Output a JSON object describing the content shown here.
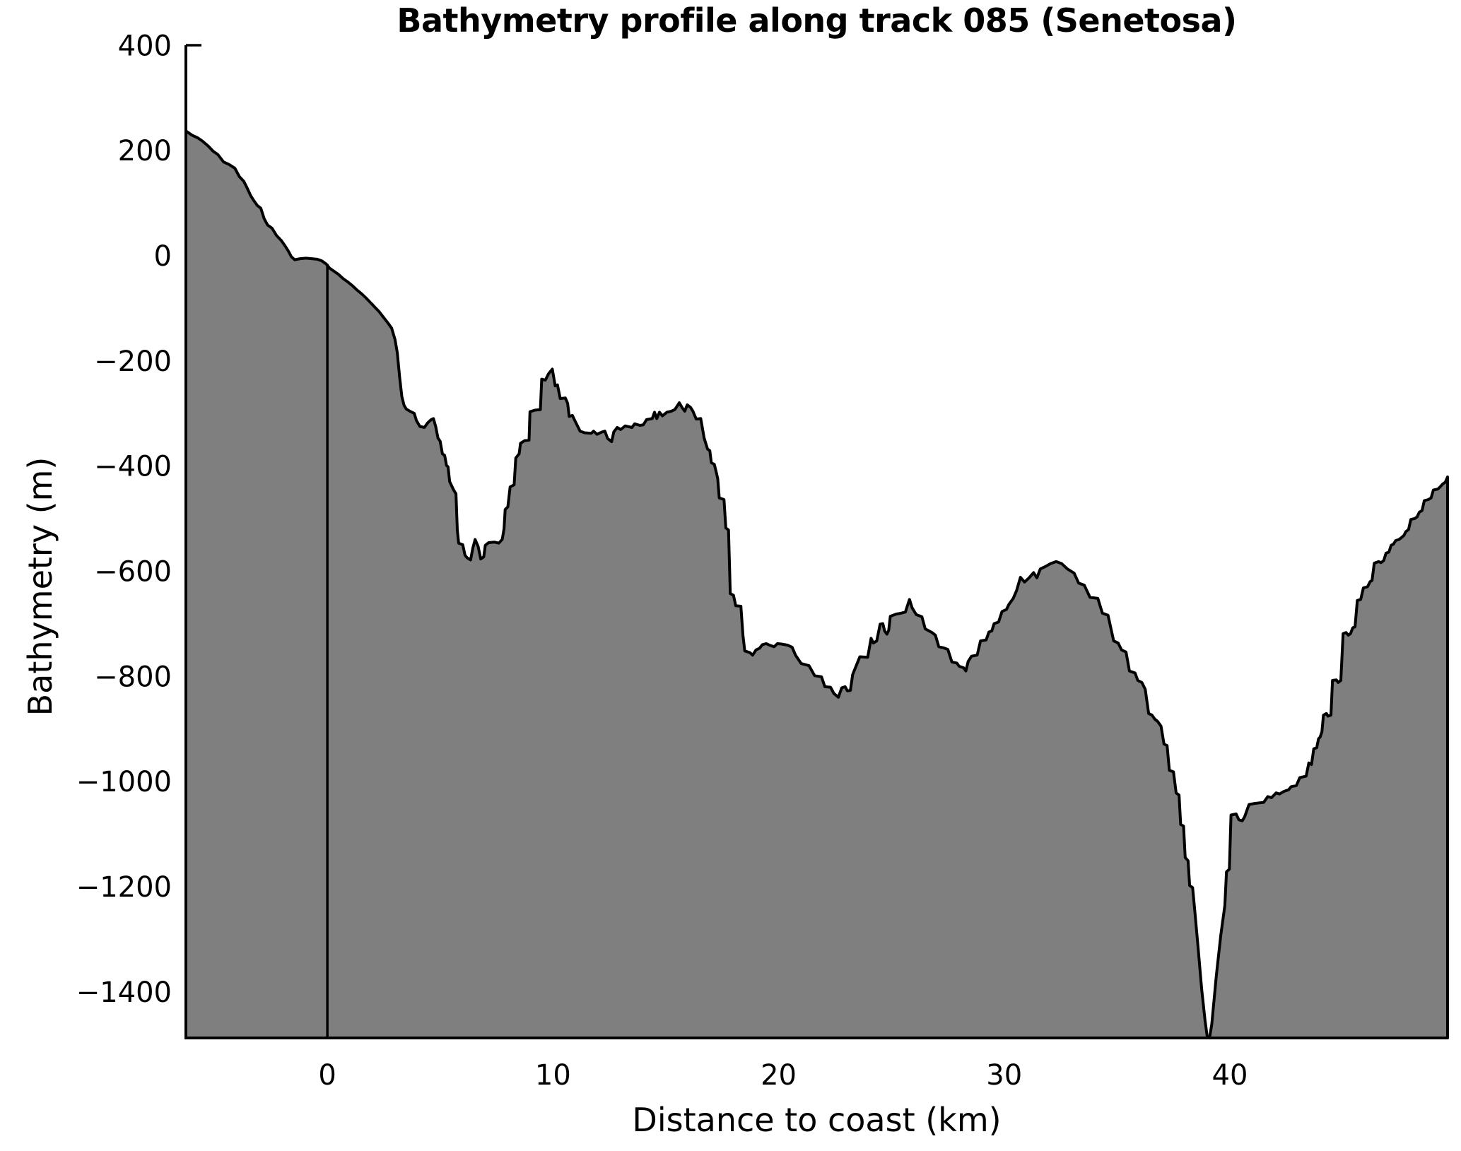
{
  "title": "Bathymetry profile along track 085 (Senetosa)",
  "chart_data": {
    "type": "area",
    "title": "Bathymetry profile along track 085 (Senetosa)",
    "xlabel": "Distance to coast (km)",
    "ylabel": "Bathymetry (m)",
    "xlim": [
      -6.27,
      49.65
    ],
    "ylim": [
      -1488,
      400
    ],
    "grid": false,
    "legend": null,
    "fill_color": "#7f7f7f",
    "line_color": "#000000",
    "background_color": "#ffffff",
    "coast_marker_x": 0,
    "x_ticks": [
      {
        "v": 0,
        "label": "0"
      },
      {
        "v": 10,
        "label": "10"
      },
      {
        "v": 20,
        "label": "20"
      },
      {
        "v": 30,
        "label": "30"
      },
      {
        "v": 40,
        "label": "40"
      }
    ],
    "y_ticks": [
      {
        "v": 400,
        "label": "400"
      },
      {
        "v": 200,
        "label": "200"
      },
      {
        "v": 0,
        "label": "0"
      },
      {
        "v": -200,
        "label": "−200"
      },
      {
        "v": -400,
        "label": "−400"
      },
      {
        "v": -600,
        "label": "−600"
      },
      {
        "v": -800,
        "label": "−800"
      },
      {
        "v": -1000,
        "label": "−1000"
      },
      {
        "v": -1200,
        "label": "−1200"
      },
      {
        "v": -1400,
        "label": "−1400"
      }
    ],
    "profile": [
      [
        -6.27,
        237
      ],
      [
        -6.0,
        229
      ],
      [
        -5.75,
        224
      ],
      [
        -5.55,
        218
      ],
      [
        -5.3,
        209
      ],
      [
        -5.05,
        198
      ],
      [
        -4.85,
        192
      ],
      [
        -4.6,
        178
      ],
      [
        -4.35,
        173
      ],
      [
        -4.1,
        166
      ],
      [
        -3.9,
        150
      ],
      [
        -3.7,
        141
      ],
      [
        -3.55,
        128
      ],
      [
        -3.4,
        114
      ],
      [
        -3.25,
        104
      ],
      [
        -3.1,
        95
      ],
      [
        -2.95,
        90
      ],
      [
        -2.8,
        70
      ],
      [
        -2.65,
        58
      ],
      [
        -2.45,
        52
      ],
      [
        -2.25,
        38
      ],
      [
        -2.05,
        29
      ],
      [
        -1.9,
        20
      ],
      [
        -1.75,
        10
      ],
      [
        -1.6,
        -2
      ],
      [
        -1.45,
        -8
      ],
      [
        -1.2,
        -6
      ],
      [
        -0.95,
        -5
      ],
      [
        -0.7,
        -6
      ],
      [
        -0.45,
        -7
      ],
      [
        -0.25,
        -10
      ],
      [
        -0.05,
        -16
      ],
      [
        0.1,
        -24
      ],
      [
        0.3,
        -30
      ],
      [
        0.5,
        -36
      ],
      [
        0.7,
        -44
      ],
      [
        0.9,
        -50
      ],
      [
        1.1,
        -57
      ],
      [
        1.3,
        -65
      ],
      [
        1.5,
        -72
      ],
      [
        1.7,
        -80
      ],
      [
        1.9,
        -89
      ],
      [
        2.1,
        -98
      ],
      [
        2.3,
        -107
      ],
      [
        2.5,
        -118
      ],
      [
        2.7,
        -129
      ],
      [
        2.85,
        -138
      ],
      [
        3.0,
        -160
      ],
      [
        3.1,
        -185
      ],
      [
        3.2,
        -230
      ],
      [
        3.3,
        -268
      ],
      [
        3.4,
        -285
      ],
      [
        3.5,
        -292
      ],
      [
        3.7,
        -297
      ],
      [
        3.85,
        -300
      ],
      [
        3.95,
        -314
      ],
      [
        4.1,
        -325
      ],
      [
        4.3,
        -327
      ],
      [
        4.45,
        -318
      ],
      [
        4.6,
        -312
      ],
      [
        4.7,
        -310
      ],
      [
        4.8,
        -325
      ],
      [
        4.9,
        -347
      ],
      [
        5.0,
        -353
      ],
      [
        5.1,
        -377
      ],
      [
        5.2,
        -380
      ],
      [
        5.28,
        -399
      ],
      [
        5.35,
        -402
      ],
      [
        5.42,
        -430
      ],
      [
        5.5,
        -437
      ],
      [
        5.6,
        -446
      ],
      [
        5.7,
        -453
      ],
      [
        5.76,
        -522
      ],
      [
        5.82,
        -547
      ],
      [
        6.0,
        -550
      ],
      [
        6.1,
        -570
      ],
      [
        6.2,
        -575
      ],
      [
        6.35,
        -579
      ],
      [
        6.45,
        -556
      ],
      [
        6.55,
        -540
      ],
      [
        6.68,
        -553
      ],
      [
        6.8,
        -577
      ],
      [
        6.93,
        -573
      ],
      [
        7.0,
        -551
      ],
      [
        7.15,
        -546
      ],
      [
        7.4,
        -545
      ],
      [
        7.6,
        -547
      ],
      [
        7.75,
        -540
      ],
      [
        7.83,
        -520
      ],
      [
        7.88,
        -483
      ],
      [
        8.0,
        -478
      ],
      [
        8.1,
        -440
      ],
      [
        8.28,
        -436
      ],
      [
        8.35,
        -385
      ],
      [
        8.5,
        -377
      ],
      [
        8.56,
        -357
      ],
      [
        8.75,
        -352
      ],
      [
        8.94,
        -351
      ],
      [
        8.98,
        -297
      ],
      [
        9.2,
        -294
      ],
      [
        9.44,
        -293
      ],
      [
        9.5,
        -235
      ],
      [
        9.66,
        -237
      ],
      [
        9.8,
        -225
      ],
      [
        9.97,
        -216
      ],
      [
        10.1,
        -248
      ],
      [
        10.2,
        -246
      ],
      [
        10.32,
        -272
      ],
      [
        10.55,
        -271
      ],
      [
        10.65,
        -281
      ],
      [
        10.72,
        -306
      ],
      [
        10.86,
        -304
      ],
      [
        10.97,
        -314
      ],
      [
        11.2,
        -334
      ],
      [
        11.4,
        -337
      ],
      [
        11.7,
        -338
      ],
      [
        11.8,
        -334
      ],
      [
        11.95,
        -340
      ],
      [
        12.15,
        -336
      ],
      [
        12.3,
        -334
      ],
      [
        12.42,
        -348
      ],
      [
        12.6,
        -354
      ],
      [
        12.7,
        -335
      ],
      [
        12.85,
        -327
      ],
      [
        13.0,
        -331
      ],
      [
        13.2,
        -324
      ],
      [
        13.5,
        -327
      ],
      [
        13.62,
        -320
      ],
      [
        13.85,
        -323
      ],
      [
        14.0,
        -322
      ],
      [
        14.15,
        -312
      ],
      [
        14.4,
        -310
      ],
      [
        14.5,
        -298
      ],
      [
        14.6,
        -310
      ],
      [
        14.72,
        -298
      ],
      [
        14.85,
        -305
      ],
      [
        15.05,
        -298
      ],
      [
        15.25,
        -296
      ],
      [
        15.4,
        -293
      ],
      [
        15.6,
        -280
      ],
      [
        15.72,
        -289
      ],
      [
        15.84,
        -296
      ],
      [
        15.95,
        -284
      ],
      [
        16.1,
        -289
      ],
      [
        16.2,
        -296
      ],
      [
        16.35,
        -311
      ],
      [
        16.55,
        -310
      ],
      [
        16.7,
        -347
      ],
      [
        16.85,
        -368
      ],
      [
        16.95,
        -371
      ],
      [
        17.02,
        -394
      ],
      [
        17.15,
        -397
      ],
      [
        17.22,
        -409
      ],
      [
        17.3,
        -424
      ],
      [
        17.37,
        -461
      ],
      [
        17.58,
        -464
      ],
      [
        17.66,
        -518
      ],
      [
        17.78,
        -522
      ],
      [
        17.86,
        -643
      ],
      [
        18.0,
        -646
      ],
      [
        18.1,
        -666
      ],
      [
        18.33,
        -667
      ],
      [
        18.42,
        -722
      ],
      [
        18.5,
        -752
      ],
      [
        18.72,
        -755
      ],
      [
        18.85,
        -760
      ],
      [
        19.0,
        -750
      ],
      [
        19.15,
        -747
      ],
      [
        19.28,
        -740
      ],
      [
        19.45,
        -738
      ],
      [
        19.6,
        -741
      ],
      [
        19.8,
        -744
      ],
      [
        19.95,
        -738
      ],
      [
        20.15,
        -739
      ],
      [
        20.4,
        -741
      ],
      [
        20.6,
        -745
      ],
      [
        20.75,
        -760
      ],
      [
        21.0,
        -776
      ],
      [
        21.35,
        -780
      ],
      [
        21.6,
        -799
      ],
      [
        21.9,
        -801
      ],
      [
        22.05,
        -820
      ],
      [
        22.3,
        -821
      ],
      [
        22.45,
        -833
      ],
      [
        22.65,
        -840
      ],
      [
        22.8,
        -822
      ],
      [
        22.95,
        -820
      ],
      [
        23.05,
        -828
      ],
      [
        23.18,
        -827
      ],
      [
        23.28,
        -797
      ],
      [
        23.6,
        -763
      ],
      [
        23.95,
        -764
      ],
      [
        24.1,
        -728
      ],
      [
        24.2,
        -737
      ],
      [
        24.35,
        -733
      ],
      [
        24.5,
        -701
      ],
      [
        24.62,
        -700
      ],
      [
        24.7,
        -714
      ],
      [
        24.8,
        -720
      ],
      [
        24.88,
        -713
      ],
      [
        24.95,
        -686
      ],
      [
        25.2,
        -682
      ],
      [
        25.45,
        -680
      ],
      [
        25.62,
        -678
      ],
      [
        25.8,
        -654
      ],
      [
        25.92,
        -670
      ],
      [
        26.1,
        -683
      ],
      [
        26.35,
        -687
      ],
      [
        26.5,
        -710
      ],
      [
        26.8,
        -717
      ],
      [
        26.95,
        -722
      ],
      [
        27.1,
        -744
      ],
      [
        27.3,
        -746
      ],
      [
        27.5,
        -749
      ],
      [
        27.68,
        -773
      ],
      [
        27.9,
        -775
      ],
      [
        28.0,
        -781
      ],
      [
        28.2,
        -784
      ],
      [
        28.3,
        -790
      ],
      [
        28.4,
        -772
      ],
      [
        28.55,
        -762
      ],
      [
        28.8,
        -760
      ],
      [
        28.95,
        -733
      ],
      [
        29.2,
        -731
      ],
      [
        29.32,
        -716
      ],
      [
        29.45,
        -714
      ],
      [
        29.55,
        -700
      ],
      [
        29.75,
        -697
      ],
      [
        29.9,
        -677
      ],
      [
        30.1,
        -673
      ],
      [
        30.2,
        -664
      ],
      [
        30.4,
        -652
      ],
      [
        30.55,
        -637
      ],
      [
        30.72,
        -612
      ],
      [
        30.9,
        -621
      ],
      [
        31.1,
        -613
      ],
      [
        31.3,
        -603
      ],
      [
        31.45,
        -613
      ],
      [
        31.6,
        -596
      ],
      [
        31.8,
        -592
      ],
      [
        32.05,
        -586
      ],
      [
        32.3,
        -582
      ],
      [
        32.55,
        -586
      ],
      [
        32.8,
        -596
      ],
      [
        33.1,
        -604
      ],
      [
        33.3,
        -623
      ],
      [
        33.55,
        -627
      ],
      [
        33.8,
        -650
      ],
      [
        34.15,
        -652
      ],
      [
        34.35,
        -680
      ],
      [
        34.6,
        -684
      ],
      [
        34.85,
        -733
      ],
      [
        35.05,
        -737
      ],
      [
        35.2,
        -750
      ],
      [
        35.4,
        -754
      ],
      [
        35.55,
        -790
      ],
      [
        35.8,
        -794
      ],
      [
        35.92,
        -808
      ],
      [
        36.1,
        -812
      ],
      [
        36.25,
        -825
      ],
      [
        36.4,
        -871
      ],
      [
        36.55,
        -874
      ],
      [
        36.68,
        -882
      ],
      [
        36.8,
        -886
      ],
      [
        36.95,
        -895
      ],
      [
        37.08,
        -929
      ],
      [
        37.22,
        -932
      ],
      [
        37.32,
        -979
      ],
      [
        37.5,
        -982
      ],
      [
        37.62,
        -1022
      ],
      [
        37.75,
        -1026
      ],
      [
        37.82,
        -1082
      ],
      [
        37.95,
        -1085
      ],
      [
        38.02,
        -1145
      ],
      [
        38.15,
        -1151
      ],
      [
        38.22,
        -1198
      ],
      [
        38.35,
        -1202
      ],
      [
        38.45,
        -1248
      ],
      [
        38.6,
        -1320
      ],
      [
        38.75,
        -1395
      ],
      [
        38.9,
        -1455
      ],
      [
        39.0,
        -1486
      ],
      [
        39.1,
        -1488
      ],
      [
        39.2,
        -1462
      ],
      [
        39.4,
        -1370
      ],
      [
        39.6,
        -1292
      ],
      [
        39.78,
        -1236
      ],
      [
        39.85,
        -1172
      ],
      [
        39.98,
        -1167
      ],
      [
        40.05,
        -1064
      ],
      [
        40.28,
        -1062
      ],
      [
        40.4,
        -1073
      ],
      [
        40.55,
        -1075
      ],
      [
        40.65,
        -1068
      ],
      [
        40.85,
        -1044
      ],
      [
        41.1,
        -1042
      ],
      [
        41.5,
        -1040
      ],
      [
        41.68,
        -1029
      ],
      [
        41.85,
        -1031
      ],
      [
        42.05,
        -1022
      ],
      [
        42.2,
        -1024
      ],
      [
        42.4,
        -1019
      ],
      [
        42.6,
        -1016
      ],
      [
        42.72,
        -1010
      ],
      [
        42.95,
        -1008
      ],
      [
        43.1,
        -993
      ],
      [
        43.38,
        -990
      ],
      [
        43.5,
        -965
      ],
      [
        43.62,
        -968
      ],
      [
        43.72,
        -938
      ],
      [
        43.85,
        -936
      ],
      [
        43.93,
        -919
      ],
      [
        44.0,
        -916
      ],
      [
        44.08,
        -906
      ],
      [
        44.15,
        -874
      ],
      [
        44.28,
        -871
      ],
      [
        44.35,
        -876
      ],
      [
        44.48,
        -874
      ],
      [
        44.55,
        -808
      ],
      [
        44.72,
        -807
      ],
      [
        44.8,
        -812
      ],
      [
        44.92,
        -808
      ],
      [
        45.02,
        -719
      ],
      [
        45.15,
        -717
      ],
      [
        45.25,
        -722
      ],
      [
        45.35,
        -719
      ],
      [
        45.45,
        -708
      ],
      [
        45.55,
        -706
      ],
      [
        45.65,
        -656
      ],
      [
        45.8,
        -654
      ],
      [
        45.92,
        -632
      ],
      [
        46.1,
        -630
      ],
      [
        46.22,
        -620
      ],
      [
        46.3,
        -618
      ],
      [
        46.4,
        -585
      ],
      [
        46.6,
        -582
      ],
      [
        46.7,
        -584
      ],
      [
        46.82,
        -580
      ],
      [
        46.92,
        -566
      ],
      [
        47.05,
        -564
      ],
      [
        47.15,
        -551
      ],
      [
        47.25,
        -549
      ],
      [
        47.35,
        -542
      ],
      [
        47.5,
        -540
      ],
      [
        47.62,
        -536
      ],
      [
        47.72,
        -532
      ],
      [
        47.8,
        -525
      ],
      [
        47.92,
        -521
      ],
      [
        48.02,
        -502
      ],
      [
        48.2,
        -500
      ],
      [
        48.3,
        -497
      ],
      [
        48.4,
        -488
      ],
      [
        48.52,
        -485
      ],
      [
        48.62,
        -466
      ],
      [
        48.8,
        -464
      ],
      [
        48.92,
        -461
      ],
      [
        49.02,
        -446
      ],
      [
        49.22,
        -444
      ],
      [
        49.32,
        -440
      ],
      [
        49.42,
        -435
      ],
      [
        49.55,
        -431
      ],
      [
        49.65,
        -421
      ]
    ]
  }
}
